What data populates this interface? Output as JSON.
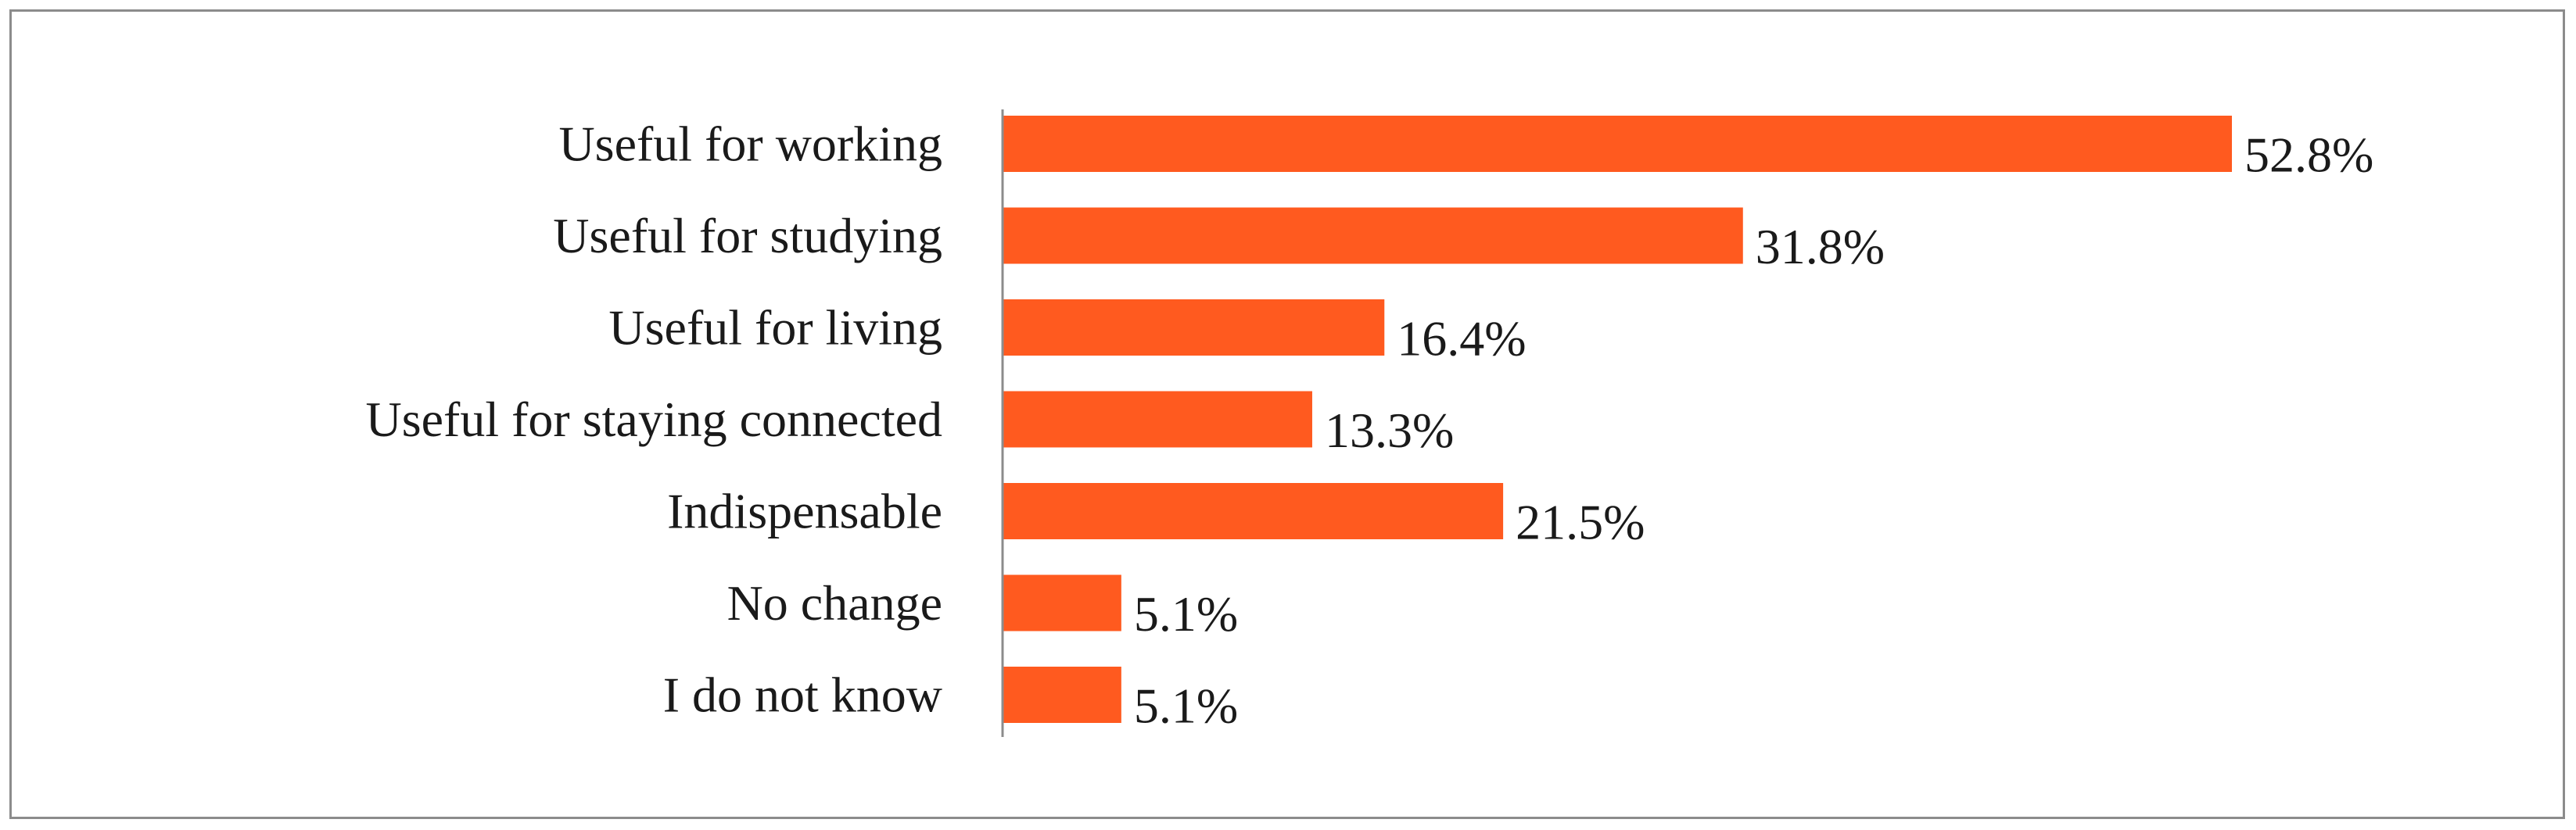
{
  "chart_data": {
    "type": "bar",
    "orientation": "horizontal",
    "title": "",
    "xlabel": "",
    "ylabel": "",
    "categories": [
      "Useful for working",
      "Useful for studying",
      "Useful for living",
      "Useful for staying connected",
      "Indispensable",
      "No change",
      "I do not know"
    ],
    "values": [
      52.8,
      31.8,
      16.4,
      13.3,
      21.5,
      5.1,
      5.1
    ],
    "value_labels": [
      "52.8%",
      "31.8%",
      "16.4%",
      "13.3%",
      "21.5%",
      "5.1%",
      "5.1%"
    ],
    "value_unit": "%",
    "xlim": [
      0,
      52.8
    ],
    "grid": false,
    "legend": "none",
    "bar_color": "#FF5A1F",
    "axis_color": "#8c8c8c"
  }
}
